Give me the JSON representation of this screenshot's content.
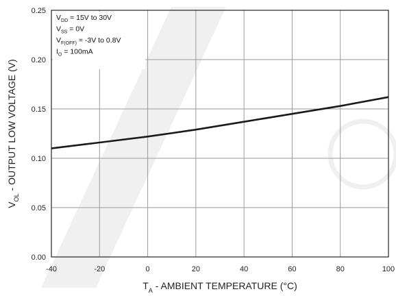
{
  "chart_data": {
    "type": "line",
    "xlabel": {
      "main": "T",
      "sub": "A",
      "rest": " - AMBIENT TEMPERATURE (°C)"
    },
    "ylabel": {
      "main": "V",
      "sub": "OL",
      "rest": " - OUTPUT LOW VOLTAGE (V)"
    },
    "xlim": [
      -40,
      100
    ],
    "ylim": [
      0,
      0.25
    ],
    "x_ticks": [
      -40,
      -20,
      0,
      20,
      40,
      60,
      80,
      100
    ],
    "x_tick_labels": [
      "-40",
      "-20",
      "0",
      "20",
      "40",
      "60",
      "80",
      "100"
    ],
    "y_ticks": [
      0,
      0.05,
      0.1,
      0.15,
      0.2,
      0.25
    ],
    "y_tick_labels": [
      "0.00",
      "0.05",
      "0.10",
      "0.15",
      "0.20",
      "0.25"
    ],
    "grid": true,
    "series": [
      {
        "x": [
          -40,
          -20,
          0,
          20,
          40,
          60,
          80,
          100
        ],
        "y": [
          0.11,
          0.116,
          0.122,
          0.129,
          0.137,
          0.145,
          0.153,
          0.162
        ]
      }
    ],
    "annotations": [
      {
        "main": "V",
        "sub": "DD",
        "rest": " = 15V to 30V"
      },
      {
        "main": "V",
        "sub": "SS",
        "rest": " = 0V"
      },
      {
        "main": "V",
        "sub": "F(OFF)",
        "rest": " = -3V to 0.8V"
      },
      {
        "main": "I",
        "sub": "O",
        "rest": " = 100mA"
      }
    ]
  }
}
